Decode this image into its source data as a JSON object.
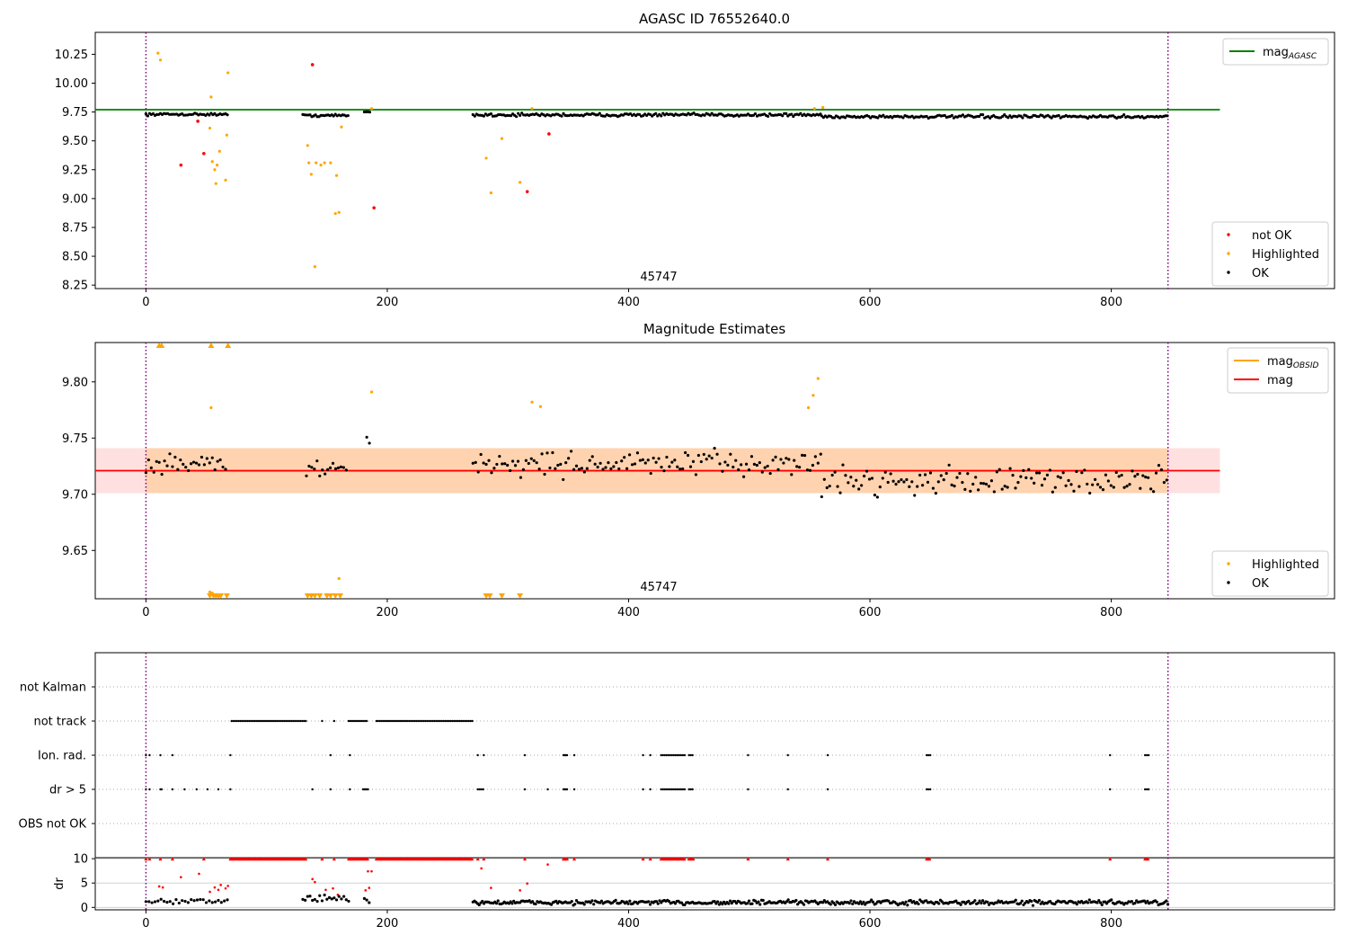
{
  "chart_data": [
    {
      "type": "scatter",
      "title": "AGASC ID 76552640.0",
      "annotation": "45747",
      "xlim": [
        -42,
        985
      ],
      "ylim": [
        8.22,
        10.44
      ],
      "x_ticks": [
        0,
        200,
        400,
        600,
        800
      ],
      "y_ticks": [
        "8.25",
        "8.50",
        "8.75",
        "9.00",
        "9.25",
        "9.50",
        "9.75",
        "10.00",
        "10.25"
      ],
      "vlines": [
        0,
        847
      ],
      "hline": {
        "label": "mag_AGASC",
        "value": 9.77,
        "color": "#008000",
        "x_range": [
          -42,
          890
        ]
      },
      "legend_top": [
        {
          "label": "mag",
          "sub": "AGASC",
          "color": "#008000"
        }
      ],
      "legend_bottom": [
        {
          "label": "not OK",
          "color": "#ff0000"
        },
        {
          "label": "Highlighted",
          "color": "#ffa500"
        },
        {
          "label": "OK",
          "color": "#000000"
        }
      ],
      "ok_segments": [
        {
          "x0": 0,
          "x1": 68,
          "mean": 9.73,
          "jitter": 0.015,
          "step": 1.5
        },
        {
          "x0": 130,
          "x1": 168,
          "mean": 9.72,
          "jitter": 0.015,
          "step": 1.5
        },
        {
          "x0": 181,
          "x1": 186,
          "mean": 9.75,
          "jitter": 0.01,
          "step": 1.5
        },
        {
          "x0": 271,
          "x1": 560,
          "mean": 9.725,
          "jitter": 0.02,
          "step": 1.5
        },
        {
          "x0": 560,
          "x1": 847,
          "mean": 9.71,
          "jitter": 0.02,
          "step": 1.5
        }
      ],
      "highlighted": [
        [
          10,
          10.26
        ],
        [
          12,
          10.2
        ],
        [
          53,
          9.61
        ],
        [
          54,
          9.88
        ],
        [
          55,
          9.32
        ],
        [
          57,
          9.25
        ],
        [
          58,
          9.13
        ],
        [
          59,
          9.29
        ],
        [
          61,
          9.41
        ],
        [
          66,
          9.16
        ],
        [
          67,
          9.55
        ],
        [
          68,
          10.09
        ],
        [
          134,
          9.46
        ],
        [
          135,
          9.31
        ],
        [
          137,
          9.21
        ],
        [
          140,
          8.41
        ],
        [
          141,
          9.31
        ],
        [
          145,
          9.29
        ],
        [
          148,
          9.31
        ],
        [
          153,
          9.31
        ],
        [
          157,
          8.87
        ],
        [
          158,
          9.2
        ],
        [
          160,
          8.88
        ],
        [
          162,
          9.62
        ],
        [
          187,
          9.78
        ],
        [
          282,
          9.35
        ],
        [
          286,
          9.05
        ],
        [
          295,
          9.52
        ],
        [
          310,
          9.14
        ],
        [
          320,
          9.78
        ],
        [
          554,
          9.78
        ],
        [
          561,
          9.79
        ]
      ],
      "not_ok": [
        [
          29,
          9.29
        ],
        [
          43,
          9.67
        ],
        [
          48,
          9.39
        ],
        [
          138,
          10.16
        ],
        [
          189,
          8.92
        ],
        [
          316,
          9.06
        ],
        [
          334,
          9.56
        ]
      ]
    },
    {
      "type": "scatter",
      "title": "Magnitude Estimates",
      "annotation": "45747",
      "xlim": [
        -42,
        985
      ],
      "ylim": [
        9.607,
        9.835
      ],
      "x_ticks": [
        0,
        200,
        400,
        600,
        800
      ],
      "y_ticks": [
        "9.65",
        "9.70",
        "9.75",
        "9.80"
      ],
      "vlines": [
        0,
        847
      ],
      "mag_line": {
        "value": 9.721,
        "band": [
          9.701,
          9.741
        ],
        "color": "#ff0000",
        "x_range": [
          -42,
          890
        ]
      },
      "obsid_band": {
        "x_range": [
          0,
          847
        ],
        "band": [
          9.701,
          9.741
        ],
        "color": "#ffa500"
      },
      "legend_top": [
        {
          "label": "mag",
          "sub": "OBSID",
          "color": "#ffa500"
        },
        {
          "label": "mag",
          "sub": "",
          "color": "#ff0000"
        }
      ],
      "legend_bottom": [
        {
          "label": "Highlighted",
          "color": "#ffa500"
        },
        {
          "label": "OK",
          "color": "#000000"
        }
      ],
      "ok_segments": [
        {
          "x0": 0,
          "x1": 68,
          "mean": 9.727,
          "jitter": 0.013,
          "step": 2.2
        },
        {
          "x0": 133,
          "x1": 168,
          "mean": 9.722,
          "jitter": 0.011,
          "step": 2.2
        },
        {
          "x0": 183,
          "x1": 186,
          "mean": 9.748,
          "jitter": 0.004,
          "step": 2.2
        },
        {
          "x0": 271,
          "x1": 560,
          "mean": 9.727,
          "jitter": 0.017,
          "step": 2.2
        },
        {
          "x0": 560,
          "x1": 847,
          "mean": 9.712,
          "jitter": 0.018,
          "step": 2.2
        }
      ],
      "highlighted": [
        [
          54,
          9.777
        ],
        [
          187,
          9.791
        ],
        [
          320,
          9.782
        ],
        [
          327,
          9.778
        ],
        [
          549,
          9.777
        ],
        [
          553,
          9.788
        ],
        [
          557,
          9.803
        ],
        [
          160,
          9.625
        ],
        [
          53,
          9.613
        ],
        [
          55,
          9.612
        ]
      ],
      "up_arrows": [
        11,
        13,
        54,
        68
      ],
      "down_arrows": [
        53,
        56,
        58,
        60,
        62,
        67,
        134,
        137,
        140,
        144,
        150,
        153,
        157,
        161,
        282,
        285,
        295,
        310
      ]
    },
    {
      "type": "scatter",
      "xlim": [
        -42,
        985
      ],
      "categories": [
        "not Kalman",
        "not track",
        "Ion. rad.",
        "dr > 5",
        "OBS not OK"
      ],
      "vlines": [
        0,
        847
      ],
      "flags": {
        "not Kalman": [],
        "not track": [
          [
            71,
            133,
            1.5
          ],
          [
            146,
            146,
            1
          ],
          [
            156,
            156,
            1
          ],
          [
            168,
            184,
            1.5
          ],
          [
            191,
            271,
            1.5
          ]
        ],
        "Ion. rad.": [
          [
            0,
            0,
            1
          ],
          [
            3,
            3,
            1
          ],
          [
            12,
            12,
            1
          ],
          [
            22,
            22,
            1
          ],
          [
            70,
            70,
            1
          ],
          [
            153,
            153,
            1
          ],
          [
            169,
            169,
            1
          ],
          [
            275,
            275,
            1
          ],
          [
            280,
            280,
            1
          ],
          [
            314,
            314,
            1
          ],
          [
            346,
            349,
            1
          ],
          [
            355,
            355,
            1
          ],
          [
            412,
            412,
            1
          ],
          [
            418,
            418,
            1
          ],
          [
            427,
            447,
            1.5
          ],
          [
            450,
            454,
            1.5
          ],
          [
            499,
            499,
            1
          ],
          [
            532,
            532,
            1
          ],
          [
            565,
            565,
            1
          ],
          [
            647,
            650,
            1.5
          ],
          [
            799,
            799,
            1
          ],
          [
            828,
            831,
            1.5
          ]
        ],
        "dr > 5": [
          [
            0,
            0,
            1
          ],
          [
            3,
            3,
            1
          ],
          [
            12,
            13,
            1
          ],
          [
            22,
            22,
            1
          ],
          [
            32,
            32,
            1
          ],
          [
            42,
            42,
            1
          ],
          [
            51,
            51,
            1
          ],
          [
            60,
            60,
            1
          ],
          [
            70,
            70,
            1
          ],
          [
            138,
            138,
            1
          ],
          [
            153,
            153,
            1
          ],
          [
            169,
            169,
            1
          ],
          [
            180,
            184,
            1
          ],
          [
            275,
            280,
            1.5
          ],
          [
            314,
            314,
            1
          ],
          [
            333,
            333,
            1
          ],
          [
            346,
            349,
            1
          ],
          [
            355,
            355,
            1
          ],
          [
            412,
            412,
            1
          ],
          [
            418,
            418,
            1
          ],
          [
            427,
            447,
            1.5
          ],
          [
            450,
            454,
            1.5
          ],
          [
            499,
            499,
            1
          ],
          [
            532,
            532,
            1
          ],
          [
            565,
            565,
            1
          ],
          [
            647,
            650,
            1.5
          ],
          [
            799,
            799,
            1
          ],
          [
            828,
            831,
            1.5
          ]
        ],
        "OBS not OK": []
      }
    },
    {
      "type": "scatter",
      "ylabel": "dr",
      "xlim": [
        -42,
        985
      ],
      "ylim": [
        -0.5,
        10.2
      ],
      "x_ticks": [
        0,
        200,
        400,
        600,
        800
      ],
      "y_ticks": [
        "0",
        "5",
        "10"
      ],
      "vlines": [
        0,
        847
      ],
      "clip_value": 10,
      "red_clipped": [
        [
          0,
          0,
          1
        ],
        [
          3,
          3,
          1
        ],
        [
          12,
          12,
          1
        ],
        [
          22,
          22,
          1
        ],
        [
          48,
          48,
          1
        ],
        [
          70,
          133,
          1.2
        ],
        [
          146,
          146,
          1
        ],
        [
          156,
          156,
          1
        ],
        [
          168,
          184,
          1.2
        ],
        [
          191,
          271,
          1.2
        ],
        [
          275,
          275,
          1
        ],
        [
          280,
          280,
          1
        ],
        [
          314,
          314,
          1
        ],
        [
          346,
          349,
          1
        ],
        [
          355,
          355,
          1
        ],
        [
          412,
          412,
          1
        ],
        [
          418,
          418,
          1
        ],
        [
          427,
          447,
          1.2
        ],
        [
          450,
          454,
          1.2
        ],
        [
          499,
          499,
          1
        ],
        [
          532,
          532,
          1
        ],
        [
          565,
          565,
          1
        ],
        [
          647,
          650,
          1.2
        ],
        [
          799,
          799,
          1
        ],
        [
          828,
          831,
          1.2
        ]
      ],
      "red_points": [
        [
          11,
          4.3
        ],
        [
          14,
          4.1
        ],
        [
          29,
          6.2
        ],
        [
          44,
          6.9
        ],
        [
          53,
          3.2
        ],
        [
          57,
          4.1
        ],
        [
          60,
          3.6
        ],
        [
          62,
          4.6
        ],
        [
          66,
          3.9
        ],
        [
          68,
          4.4
        ],
        [
          138,
          5.8
        ],
        [
          140,
          5.2
        ],
        [
          149,
          3.6
        ],
        [
          155,
          3.9
        ],
        [
          159,
          2.6
        ],
        [
          182,
          3.5
        ],
        [
          185,
          4.0
        ],
        [
          184,
          7.4
        ],
        [
          187,
          7.4
        ],
        [
          278,
          8.0
        ],
        [
          286,
          4.0
        ],
        [
          310,
          3.5
        ],
        [
          316,
          4.9
        ],
        [
          333,
          8.8
        ]
      ],
      "ok_segments": [
        {
          "x0": 0,
          "x1": 68,
          "mean": 1.3,
          "jitter": 0.9,
          "step": 2.5
        },
        {
          "x0": 130,
          "x1": 168,
          "mean": 1.8,
          "jitter": 1.2,
          "step": 2
        },
        {
          "x0": 181,
          "x1": 186,
          "mean": 1.5,
          "jitter": 0.8,
          "step": 2
        },
        {
          "x0": 271,
          "x1": 847,
          "mean": 1.0,
          "jitter": 0.7,
          "step": 1.3
        }
      ]
    }
  ]
}
